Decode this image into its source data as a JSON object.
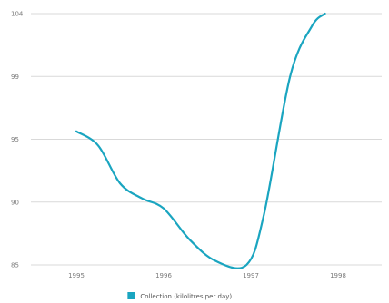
{
  "chart_data": {
    "type": "line",
    "title": "",
    "xlabel": "",
    "ylabel": "",
    "x": [
      1995,
      1996,
      1997,
      1998
    ],
    "x_ticks": [
      "1995",
      "1996",
      "1997",
      "1998"
    ],
    "y_ticks": [
      "85",
      "90",
      "95",
      "99",
      "104"
    ],
    "ylim": [
      85,
      104
    ],
    "grid": true,
    "legend_position": "bottom",
    "series": [
      {
        "name": "Collection (kilolitres per day)",
        "color": "#1aa5c0",
        "points": [
          {
            "x": 1995.0,
            "y": 95.5
          },
          {
            "x": 1995.25,
            "y": 94.5
          },
          {
            "x": 1995.5,
            "y": 91.5
          },
          {
            "x": 1995.75,
            "y": 90.3
          },
          {
            "x": 1996.0,
            "y": 89.5
          },
          {
            "x": 1996.3,
            "y": 87.0
          },
          {
            "x": 1996.6,
            "y": 85.3
          },
          {
            "x": 1996.95,
            "y": 85.0
          },
          {
            "x": 1997.15,
            "y": 89.0
          },
          {
            "x": 1997.45,
            "y": 99.0
          },
          {
            "x": 1997.7,
            "y": 103.0
          },
          {
            "x": 1997.85,
            "y": 104.0
          }
        ]
      }
    ]
  }
}
